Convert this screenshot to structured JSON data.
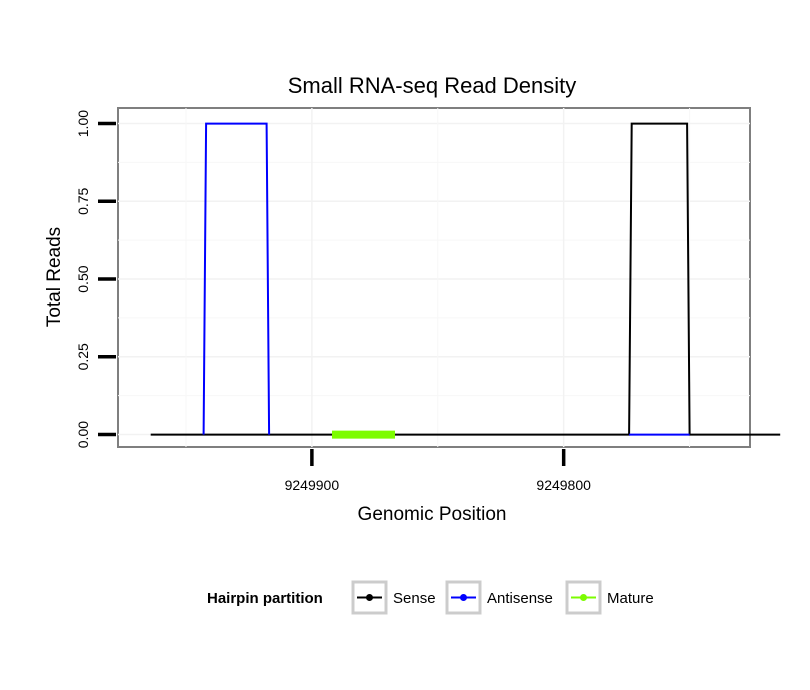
{
  "chart_data": {
    "type": "line",
    "title": "Small RNA-seq Read Density",
    "xlabel": "Genomic Position",
    "ylabel": "Total Reads",
    "x_reversed": true,
    "xlim": [
      9249977,
      9249726
    ],
    "ylim": [
      -0.04,
      1.05
    ],
    "x_ticks": [
      9249900,
      9249800
    ],
    "x_tick_labels": [
      "9249900",
      "9249800"
    ],
    "y_ticks": [
      0,
      0.25,
      0.5,
      0.75,
      1.0
    ],
    "y_tick_labels": [
      "0.00",
      "0.25",
      "0.50",
      "0.75",
      "1.00"
    ],
    "series": [
      {
        "name": "Sense",
        "color": "#000000",
        "x": [
          9249964,
          9249774,
          9249773,
          9249751,
          9249750,
          9249714
        ],
        "y": [
          0,
          0,
          1,
          1,
          0,
          0
        ]
      },
      {
        "name": "Antisense",
        "color": "#0000ff",
        "x": [
          9249943,
          9249942,
          9249918,
          9249917
        ],
        "y": [
          0,
          1,
          1,
          0
        ]
      },
      {
        "name": "Antisense",
        "color": "#0000ff",
        "x": [
          9249774,
          9249750
        ],
        "y": [
          0,
          0
        ]
      },
      {
        "name": "Mature",
        "color": "#7cfc00",
        "x": [
          9249892,
          9249867
        ],
        "y": [
          0,
          0
        ]
      }
    ],
    "legend": {
      "title": "Hairpin partition",
      "placement": "bottom",
      "entries": [
        {
          "label": "Sense",
          "color": "#000000"
        },
        {
          "label": "Antisense",
          "color": "#0000ff"
        },
        {
          "label": "Mature",
          "color": "#7cfc00"
        }
      ]
    }
  }
}
